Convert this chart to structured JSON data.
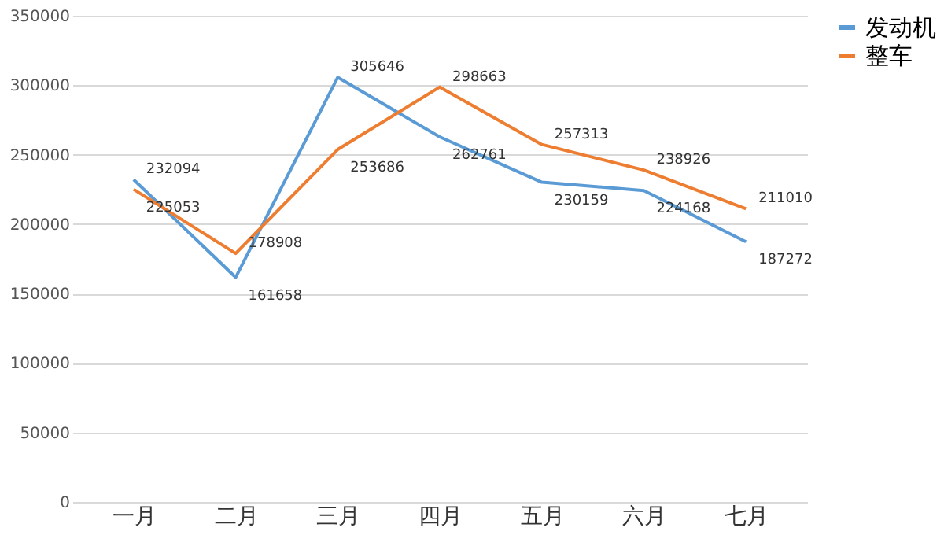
{
  "chart_data": {
    "type": "line",
    "categories": [
      "一月",
      "二月",
      "三月",
      "四月",
      "五月",
      "六月",
      "七月"
    ],
    "series": [
      {
        "name": "发动机",
        "color": "#5b9bd5",
        "values": [
          232094,
          161658,
          305646,
          262761,
          230159,
          224168,
          187272
        ]
      },
      {
        "name": "整车",
        "color": "#ed7d31",
        "values": [
          225053,
          178908,
          253686,
          298663,
          257313,
          238926,
          211010
        ]
      }
    ],
    "ylim": [
      0,
      350000
    ],
    "yticks": [
      0,
      50000,
      100000,
      150000,
      200000,
      250000,
      300000,
      350000
    ],
    "grid": "y",
    "legend": "right",
    "data_labels": true,
    "marker": "none",
    "line_style": "solid"
  }
}
